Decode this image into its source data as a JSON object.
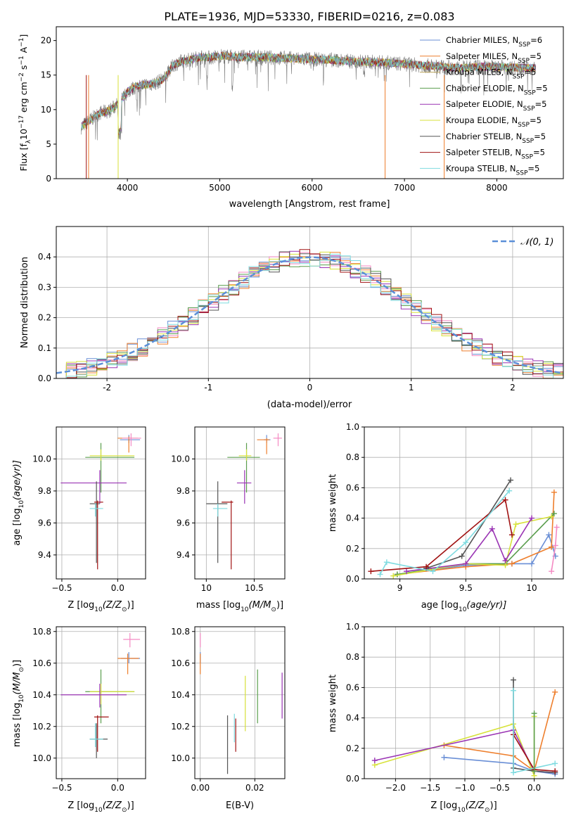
{
  "figure": {
    "title": "PLATE=1936, MJD=53330, FIBERID=0216, z=0.083"
  },
  "chart_data": [
    {
      "id": "spectrum",
      "type": "line",
      "xlabel": "wavelength [Angstrom, rest frame]",
      "ylabel_main": "Flux [f",
      "ylabel_sub": "λ",
      "ylabel_rest": "10",
      "ylabel_exp1": "−17",
      "ylabel_mid": " erg cm",
      "ylabel_exp2": "−2",
      "ylabel_mid2": " s",
      "ylabel_exp3": "−1",
      "ylabel_mid3": " A",
      "ylabel_exp4": "−1",
      "ylabel_end": "]",
      "xlim": [
        3230,
        8720
      ],
      "ylim": [
        0,
        22
      ],
      "xticks": [
        4000,
        5000,
        6000,
        7000,
        8000
      ],
      "yticks": [
        0,
        5,
        10,
        15,
        20
      ],
      "legend_placement": "top-right",
      "grid": false,
      "series": [
        {
          "name": "Chabrier MILES, N",
          "sub": "SSP",
          "suffix": "=6",
          "color": "#6a8fd6"
        },
        {
          "name": "Salpeter MILES, N",
          "sub": "SSP",
          "suffix": "=5",
          "color": "#ee7f2d"
        },
        {
          "name": "Kroupa MILES, N",
          "sub": "SSP",
          "suffix": "=5",
          "color": "#b8a25a"
        },
        {
          "name": "Chabrier ELODIE, N",
          "sub": "SSP",
          "suffix": "=5",
          "color": "#5b9e4e"
        },
        {
          "name": "Salpeter ELODIE, N",
          "sub": "SSP",
          "suffix": "=5",
          "color": "#9a34b4"
        },
        {
          "name": "Kroupa ELODIE, N",
          "sub": "SSP",
          "suffix": "=5",
          "color": "#d7e23a"
        },
        {
          "name": "Chabrier STELIB, N",
          "sub": "SSP",
          "suffix": "=5",
          "color": "#555555"
        },
        {
          "name": "Salpeter STELIB, N",
          "sub": "SSP",
          "suffix": "=5",
          "color": "#a01212"
        },
        {
          "name": "Kroupa STELIB, N",
          "sub": "SSP",
          "suffix": "=5",
          "color": "#7fdbe0"
        }
      ],
      "continuum": {
        "x": [
          3500,
          3600,
          3700,
          3800,
          3900,
          4000,
          4100,
          4200,
          4300,
          4400,
          4500,
          4600,
          4700,
          4800,
          4900,
          5000,
          5200,
          5400,
          5600,
          5800,
          6000,
          6200,
          6400,
          6600,
          6800,
          7000,
          7200,
          7400,
          7600,
          7800,
          8000,
          8200,
          8400
        ],
        "y": [
          7.5,
          8.5,
          9.5,
          9.8,
          10.8,
          12.6,
          13.4,
          13.6,
          13.8,
          14.5,
          16.5,
          17.0,
          17.3,
          17.6,
          17.5,
          17.8,
          17.6,
          17.6,
          17.5,
          17.4,
          17.3,
          17.2,
          17.0,
          16.9,
          16.8,
          16.6,
          16.4,
          16.2,
          16.0,
          16.2,
          16.2,
          16.1,
          16.0
        ]
      }
    },
    {
      "id": "residuals",
      "type": "bar",
      "xlabel": "(data-model)/error",
      "ylabel": "Normed distribution",
      "xlim": [
        -2.5,
        2.5
      ],
      "ylim": [
        0,
        0.5
      ],
      "xticks": [
        -2,
        -1,
        0,
        1,
        2
      ],
      "yticks": [
        0.0,
        0.1,
        0.2,
        0.3,
        0.4
      ],
      "grid": true,
      "legend_placement": "top-right",
      "gaussian_label": "𝒩(0, 1)",
      "gaussian_color": "#5b8fd8",
      "bin_width": 0.1
    },
    {
      "id": "age-vs-Z",
      "type": "scatter",
      "xlabel_main": "Z [log",
      "xlabel_sub": "10",
      "xlabel_rest": "(Z/Z",
      "xlabel_sub2": "⊙",
      "xlabel_end": ")]",
      "ylabel_main": "age  [log",
      "ylabel_sub": "10",
      "ylabel_rest": "(age/yr)]",
      "xlim": [
        -0.55,
        0.25
      ],
      "ylim": [
        9.25,
        10.2
      ],
      "xticks": [
        -0.5,
        0.0
      ],
      "xtick_labels": [
        "−0.5",
        "0.0"
      ],
      "yticks": [
        9.4,
        9.6,
        9.8,
        10.0
      ],
      "grid": true,
      "points": [
        {
          "x": 0.1,
          "y": 10.12,
          "xerr": [
            0.08,
            0.1
          ],
          "yerr": [
            0.02,
            0.03
          ],
          "color": "#6a8fd6"
        },
        {
          "x": 0.1,
          "y": 10.13,
          "xerr": [
            0.1,
            0.08
          ],
          "yerr": [
            0.09,
            0.01
          ],
          "color": "#ee7f2d"
        },
        {
          "x": 0.12,
          "y": 10.13,
          "xerr": [
            0.08,
            0.09
          ],
          "yerr": [
            0.05,
            0.03
          ],
          "color": "#f48ac3"
        },
        {
          "x": -0.15,
          "y": 10.01,
          "xerr": [
            0.14,
            0.3
          ],
          "yerr": [
            0.22,
            0.09
          ],
          "color": "#5b9e4e"
        },
        {
          "x": -0.15,
          "y": 10.02,
          "xerr": [
            0.1,
            0.3
          ],
          "yerr": [
            0.03,
            0.04
          ],
          "color": "#d7e23a"
        },
        {
          "x": -0.16,
          "y": 9.85,
          "xerr": [
            0.35,
            0.24
          ],
          "yerr": [
            0.13,
            0.08
          ],
          "color": "#9a34b4"
        },
        {
          "x": -0.19,
          "y": 9.72,
          "xerr": [
            0.06,
            0.03
          ],
          "yerr": [
            0.37,
            0.14
          ],
          "color": "#555555"
        },
        {
          "x": -0.18,
          "y": 9.73,
          "xerr": [
            0.03,
            0.05
          ],
          "yerr": [
            0.42,
            0.01
          ],
          "color": "#a01212"
        },
        {
          "x": -0.2,
          "y": 9.69,
          "xerr": [
            0.05,
            0.07
          ],
          "yerr": [
            0.05,
            0.03
          ],
          "color": "#7fdbe0"
        }
      ]
    },
    {
      "id": "age-vs-mass",
      "type": "scatter",
      "xlabel_main": "mass [log",
      "xlabel_sub": "10",
      "xlabel_rest": "(M/M",
      "xlabel_sub2": "⊙",
      "xlabel_end": ")]",
      "xlim": [
        9.88,
        10.82
      ],
      "ylim": [
        9.25,
        10.2
      ],
      "xticks": [
        10.0,
        10.5
      ],
      "yticks": [
        9.4,
        9.6,
        9.8,
        10.0
      ],
      "grid": true,
      "points": [
        {
          "x": 10.63,
          "y": 10.12,
          "xerr": [
            0.03,
            0.04
          ],
          "yerr": [
            0.02,
            0.03
          ],
          "color": "#6a8fd6"
        },
        {
          "x": 10.63,
          "y": 10.12,
          "xerr": [
            0.1,
            0.03
          ],
          "yerr": [
            0.09,
            0.01
          ],
          "color": "#ee7f2d"
        },
        {
          "x": 10.75,
          "y": 10.13,
          "xerr": [
            0.05,
            0.04
          ],
          "yerr": [
            0.05,
            0.03
          ],
          "color": "#f48ac3"
        },
        {
          "x": 10.42,
          "y": 10.01,
          "xerr": [
            0.2,
            0.14
          ],
          "yerr": [
            0.22,
            0.09
          ],
          "color": "#5b9e4e"
        },
        {
          "x": 10.42,
          "y": 10.02,
          "xerr": [
            0.08,
            0.05
          ],
          "yerr": [
            0.03,
            0.04
          ],
          "color": "#d7e23a"
        },
        {
          "x": 10.4,
          "y": 9.85,
          "xerr": [
            0.08,
            0.07
          ],
          "yerr": [
            0.13,
            0.08
          ],
          "color": "#9a34b4"
        },
        {
          "x": 10.12,
          "y": 9.72,
          "xerr": [
            0.12,
            0.1
          ],
          "yerr": [
            0.37,
            0.14
          ],
          "color": "#555555"
        },
        {
          "x": 10.26,
          "y": 9.73,
          "xerr": [
            0.1,
            0.02
          ],
          "yerr": [
            0.42,
            0.01
          ],
          "color": "#a01212"
        },
        {
          "x": 10.12,
          "y": 9.69,
          "xerr": [
            0.05,
            0.1
          ],
          "yerr": [
            0.05,
            0.03
          ],
          "color": "#7fdbe0"
        }
      ]
    },
    {
      "id": "massweight-vs-age",
      "type": "line",
      "xlabel_main": "age  [log",
      "xlabel_sub": "10",
      "xlabel_rest": "(age/yr)]",
      "ylabel": "mass weight",
      "xlim": [
        8.73,
        10.24
      ],
      "ylim": [
        0,
        1
      ],
      "xticks": [
        9.0,
        9.5,
        10.0
      ],
      "yticks": [
        0.0,
        0.2,
        0.4,
        0.6,
        0.8,
        1.0
      ],
      "grid": true,
      "series": [
        {
          "color": "#6a8fd6",
          "x": [
            8.98,
            9.5,
            9.85,
            10.0,
            10.13,
            10.18
          ],
          "y": [
            0.03,
            0.09,
            0.1,
            0.1,
            0.29,
            0.15
          ]
        },
        {
          "color": "#ee7f2d",
          "x": [
            8.98,
            9.5,
            9.85,
            10.15,
            10.17
          ],
          "y": [
            0.03,
            0.08,
            0.1,
            0.21,
            0.57
          ]
        },
        {
          "color": "#f48ac3",
          "x": [
            10.15,
            10.18,
            10.19
          ],
          "y": [
            0.05,
            0.22,
            0.34
          ]
        },
        {
          "color": "#5b9e4e",
          "x": [
            8.98,
            9.5,
            9.8,
            10.17
          ],
          "y": [
            0.03,
            0.1,
            0.1,
            0.43
          ]
        },
        {
          "color": "#d7e23a",
          "x": [
            8.95,
            9.5,
            9.8,
            9.88,
            10.15
          ],
          "y": [
            0.02,
            0.1,
            0.09,
            0.36,
            0.41
          ]
        },
        {
          "color": "#9a34b4",
          "x": [
            9.05,
            9.5,
            9.7,
            9.8,
            10.0
          ],
          "y": [
            0.05,
            0.1,
            0.33,
            0.12,
            0.4
          ]
        },
        {
          "color": "#555555",
          "x": [
            9.2,
            9.47,
            9.84
          ],
          "y": [
            0.07,
            0.15,
            0.65
          ]
        },
        {
          "color": "#a01212",
          "x": [
            8.78,
            9.2,
            9.8,
            9.85
          ],
          "y": [
            0.05,
            0.08,
            0.52,
            0.29
          ]
        },
        {
          "color": "#7fdbe0",
          "x": [
            8.85,
            8.9,
            9.25,
            9.5,
            9.83
          ],
          "y": [
            0.03,
            0.11,
            0.05,
            0.24,
            0.58
          ]
        }
      ]
    },
    {
      "id": "mass-vs-Z",
      "type": "scatter",
      "xlabel_main": "Z [log",
      "xlabel_sub": "10",
      "xlabel_rest": "(Z/Z",
      "xlabel_sub2": "⊙",
      "xlabel_end": ")]",
      "ylabel_main": "mass [log",
      "ylabel_sub": "10",
      "ylabel_rest": "(M/M",
      "ylabel_sub2": "⊙",
      "ylabel_end": ")]",
      "xlim": [
        -0.55,
        0.25
      ],
      "ylim": [
        9.87,
        10.83
      ],
      "xticks": [
        -0.5,
        0.0
      ],
      "xtick_labels": [
        "−0.5",
        "0.0"
      ],
      "yticks": [
        10.0,
        10.2,
        10.4,
        10.6,
        10.8
      ],
      "grid": true,
      "points": [
        {
          "x": 0.1,
          "y": 10.63,
          "xerr": [
            0.07,
            0.1
          ],
          "yerr": [
            0.03,
            0.04
          ],
          "color": "#6a8fd6"
        },
        {
          "x": 0.09,
          "y": 10.63,
          "xerr": [
            0.09,
            0.1
          ],
          "yerr": [
            0.1,
            0.03
          ],
          "color": "#ee7f2d"
        },
        {
          "x": 0.11,
          "y": 10.75,
          "xerr": [
            0.06,
            0.09
          ],
          "yerr": [
            0.05,
            0.04
          ],
          "color": "#f48ac3"
        },
        {
          "x": -0.15,
          "y": 10.42,
          "xerr": [
            0.14,
            0.3
          ],
          "yerr": [
            0.2,
            0.14
          ],
          "color": "#5b9e4e"
        },
        {
          "x": -0.15,
          "y": 10.42,
          "xerr": [
            0.1,
            0.3
          ],
          "yerr": [
            0.08,
            0.05
          ],
          "color": "#d7e23a"
        },
        {
          "x": -0.16,
          "y": 10.4,
          "xerr": [
            0.35,
            0.24
          ],
          "yerr": [
            0.08,
            0.07
          ],
          "color": "#9a34b4"
        },
        {
          "x": -0.19,
          "y": 10.12,
          "xerr": [
            0.06,
            0.1
          ],
          "yerr": [
            0.12,
            0.1
          ],
          "color": "#555555"
        },
        {
          "x": -0.18,
          "y": 10.26,
          "xerr": [
            0.03,
            0.1
          ],
          "yerr": [
            0.22,
            0.01
          ],
          "color": "#a01212"
        },
        {
          "x": -0.2,
          "y": 10.12,
          "xerr": [
            0.05,
            0.07
          ],
          "yerr": [
            0.05,
            0.1
          ],
          "color": "#7fdbe0"
        }
      ]
    },
    {
      "id": "mass-vs-ebv",
      "type": "scatter",
      "xlabel": "E(B-V)",
      "xlim": [
        -0.002,
        0.031
      ],
      "ylim": [
        9.87,
        10.83
      ],
      "xticks": [
        0.0,
        0.02
      ],
      "xtick_labels": [
        "0.00",
        "0.02"
      ],
      "yticks": [
        10.0,
        10.2,
        10.4,
        10.6,
        10.8
      ],
      "grid": true,
      "points": [
        {
          "x": 0.0,
          "y": 10.63,
          "yerr": [
            0.03,
            0.04
          ],
          "color": "#6a8fd6"
        },
        {
          "x": 0.0,
          "y": 10.63,
          "yerr": [
            0.1,
            0.03
          ],
          "color": "#ee7f2d"
        },
        {
          "x": 0.0,
          "y": 10.75,
          "yerr": [
            0.05,
            0.04
          ],
          "color": "#f48ac3"
        },
        {
          "x": 0.021,
          "y": 10.42,
          "yerr": [
            0.2,
            0.14
          ],
          "color": "#5b9e4e"
        },
        {
          "x": 0.0165,
          "y": 10.42,
          "yerr": [
            0.25,
            0.1
          ],
          "color": "#d7e23a"
        },
        {
          "x": 0.03,
          "y": 10.4,
          "yerr": [
            0.15,
            0.14
          ],
          "color": "#9a34b4"
        },
        {
          "x": 0.01,
          "y": 10.1,
          "yerr": [
            0.2,
            0.17
          ],
          "color": "#555555"
        },
        {
          "x": 0.013,
          "y": 10.15,
          "yerr": [
            0.11,
            0.1
          ],
          "color": "#a01212"
        },
        {
          "x": 0.0125,
          "y": 10.15,
          "yerr": [
            0.05,
            0.13
          ],
          "color": "#7fdbe0"
        }
      ]
    },
    {
      "id": "massweight-vs-Z",
      "type": "line",
      "xlabel_main": "Z [log",
      "xlabel_sub": "10",
      "xlabel_rest": "(Z/Z",
      "xlabel_sub2": "⊙",
      "xlabel_end": ")]",
      "ylabel": "mass weight",
      "xlim": [
        -2.45,
        0.42
      ],
      "ylim": [
        0,
        1
      ],
      "xticks": [
        -2.0,
        -1.5,
        -1.0,
        -0.5,
        0.0
      ],
      "xtick_labels": [
        "−2.0",
        "−1.5",
        "−1.0",
        "−0.5",
        "0.0"
      ],
      "yticks": [
        0.0,
        0.2,
        0.4,
        0.6,
        0.8,
        1.0
      ],
      "grid": true,
      "series": [
        {
          "color": "#6a8fd6",
          "x": [
            -1.3,
            -0.3,
            0.0,
            0.3
          ],
          "y": [
            0.14,
            0.1,
            0.05,
            0.03
          ]
        },
        {
          "color": "#ee7f2d",
          "x": [
            -1.3,
            -0.3,
            0.0,
            0.3
          ],
          "y": [
            0.22,
            0.15,
            0.05,
            0.57
          ]
        },
        {
          "color": "#d7e23a",
          "x": [
            -2.3,
            -0.3,
            0.0,
            0.0
          ],
          "y": [
            0.09,
            0.36,
            0.02,
            0.41
          ]
        },
        {
          "color": "#9a34b4",
          "x": [
            -2.3,
            -0.3,
            0.0,
            0.3
          ],
          "y": [
            0.12,
            0.32,
            0.05,
            0.04
          ]
        },
        {
          "color": "#555555",
          "x": [
            -0.3,
            -0.3,
            0.0,
            0.3
          ],
          "y": [
            0.65,
            0.07,
            0.05,
            0.04
          ]
        },
        {
          "color": "#a01212",
          "x": [
            -0.3,
            0.0,
            0.3
          ],
          "y": [
            0.29,
            0.06,
            0.05
          ]
        },
        {
          "color": "#7fdbe0",
          "x": [
            -0.3,
            -0.3,
            0.3
          ],
          "y": [
            0.58,
            0.04,
            0.1
          ]
        },
        {
          "color": "#5b9e4e",
          "x": [
            0.0,
            0.0
          ],
          "y": [
            0.43,
            0.05
          ]
        }
      ]
    }
  ]
}
